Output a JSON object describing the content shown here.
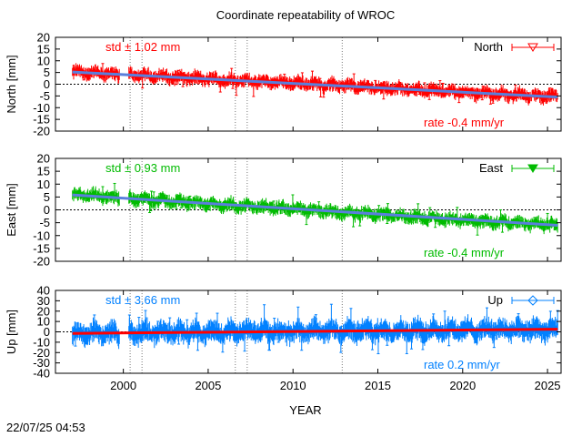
{
  "title": "Coordinate repeatability of WROC",
  "xlabel": "YEAR",
  "timestamp": "22/07/25 04:53",
  "chart_data": [
    {
      "type": "scatter",
      "id": "north",
      "ylabel": "North [mm]",
      "legend": "North",
      "legend_position": "top-right",
      "std_label": "std ± 1.02 mm",
      "rate_label": "rate -0.4 mm/yr",
      "color": "#ff0000",
      "trend_color": "#5a7fdc",
      "xlim": [
        1996,
        2025.8
      ],
      "ylim": [
        -20,
        20
      ],
      "yticks": [
        -20,
        -15,
        -10,
        -5,
        0,
        5,
        10,
        15,
        20
      ],
      "trend": {
        "x": [
          1997,
          2025.6
        ],
        "y": [
          5.2,
          -5.5
        ]
      },
      "envelope": {
        "x": [
          1997,
          2001,
          2005,
          2010,
          2015,
          2020,
          2025.6
        ],
        "y": [
          5.2,
          3.8,
          2.2,
          0.5,
          -1.4,
          -3.5,
          -5.5
        ]
      },
      "spread": 2.5,
      "gap": [
        1999.8,
        2000.3
      ]
    },
    {
      "type": "scatter",
      "id": "east",
      "ylabel": "East [mm]",
      "legend": "East",
      "legend_position": "top-right",
      "std_label": "std ± 0.93 mm",
      "rate_label": "rate -0.4 mm/yr",
      "color": "#00bb00",
      "trend_color": "#5a7fdc",
      "xlim": [
        1996,
        2025.8
      ],
      "ylim": [
        -20,
        20
      ],
      "yticks": [
        -20,
        -15,
        -10,
        -5,
        0,
        5,
        10,
        15,
        20
      ],
      "trend": {
        "x": [
          1997,
          2025.6
        ],
        "y": [
          5.8,
          -6.0
        ]
      },
      "envelope": {
        "x": [
          1997,
          2001,
          2005,
          2010,
          2015,
          2020,
          2025.6
        ],
        "y": [
          5.8,
          4.2,
          2.4,
          0.3,
          -1.9,
          -4.0,
          -6.0
        ]
      },
      "spread": 2.3,
      "gap": [
        1999.8,
        2000.3
      ]
    },
    {
      "type": "scatter",
      "id": "up",
      "ylabel": "Up [mm]",
      "legend": "Up",
      "legend_position": "top-right",
      "std_label": "std ± 3.66 mm",
      "rate_label": "rate  0.2 mm/yr",
      "color": "#0080ff",
      "trend_color": "#ff0000",
      "xlim": [
        1996,
        2025.8
      ],
      "ylim": [
        -40,
        40
      ],
      "yticks": [
        -40,
        -30,
        -20,
        -10,
        0,
        10,
        20,
        30,
        40
      ],
      "trend": {
        "x": [
          1997,
          2025.6
        ],
        "y": [
          -1.5,
          2.5
        ]
      },
      "envelope": {
        "x": [
          1997,
          2005,
          2015,
          2025.6
        ],
        "y": [
          -1.5,
          0,
          1.2,
          2.5
        ]
      },
      "spread": 9,
      "gap": [
        1999.8,
        2000.3
      ]
    }
  ],
  "event_lines": [
    2000.4,
    2001.1,
    2006.6,
    2007.3,
    2012.9
  ],
  "xticks": [
    2000,
    2005,
    2010,
    2015,
    2020,
    2025
  ]
}
